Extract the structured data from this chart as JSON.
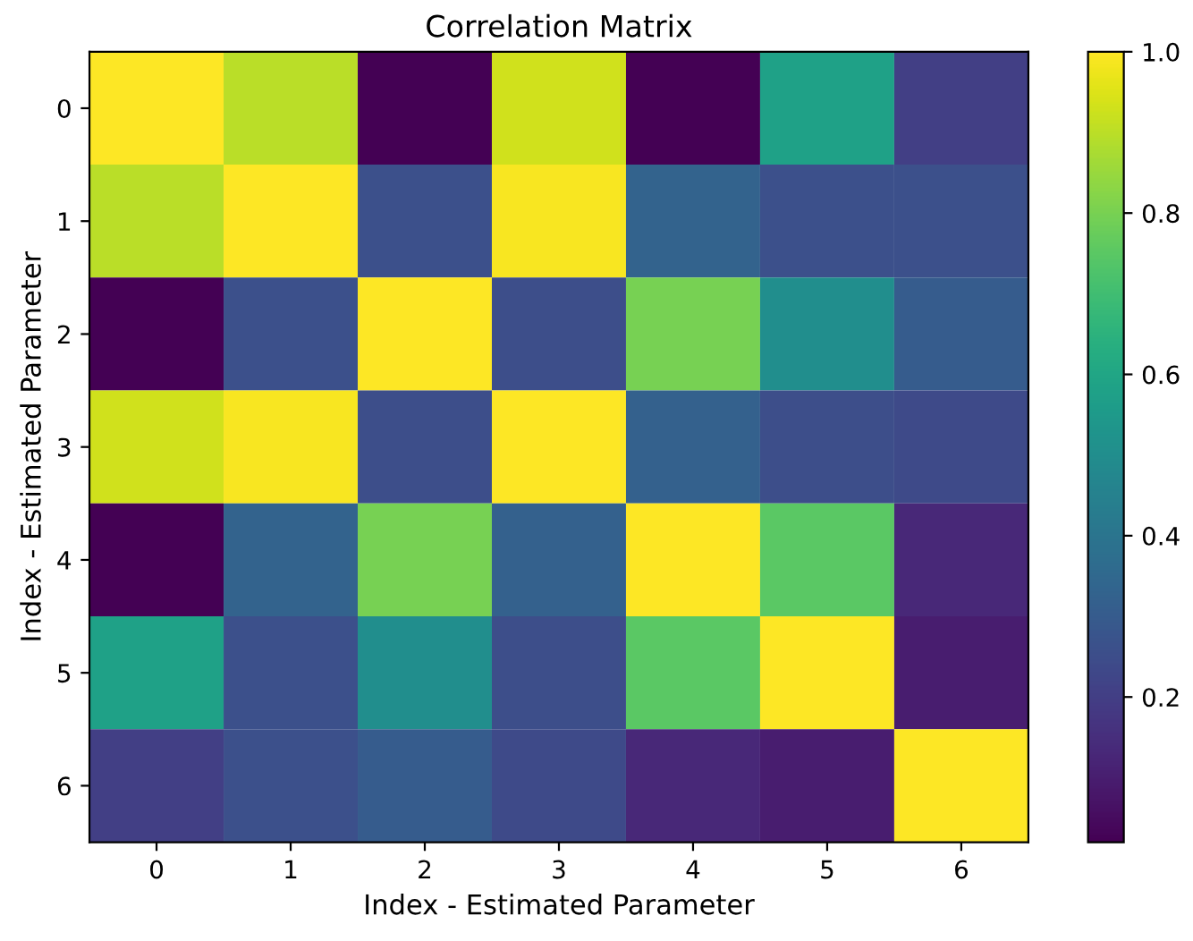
{
  "chart_data": {
    "type": "heatmap",
    "title": "Correlation Matrix",
    "xlabel": "Index - Estimated Parameter",
    "ylabel": "Index - Estimated Parameter",
    "categories": [
      "0",
      "1",
      "2",
      "3",
      "4",
      "5",
      "6"
    ],
    "y_categories": [
      "0",
      "1",
      "2",
      "3",
      "4",
      "5",
      "6"
    ],
    "cells": [
      [
        1.0,
        0.9,
        0.02,
        0.93,
        0.02,
        0.58,
        0.2
      ],
      [
        0.9,
        1.0,
        0.26,
        0.99,
        0.33,
        0.26,
        0.26
      ],
      [
        0.02,
        0.26,
        1.0,
        0.25,
        0.8,
        0.5,
        0.3
      ],
      [
        0.93,
        0.99,
        0.25,
        1.0,
        0.32,
        0.25,
        0.24
      ],
      [
        0.02,
        0.33,
        0.8,
        0.32,
        1.0,
        0.75,
        0.13
      ],
      [
        0.58,
        0.26,
        0.5,
        0.25,
        0.75,
        1.0,
        0.1
      ],
      [
        0.2,
        0.26,
        0.3,
        0.24,
        0.13,
        0.1,
        1.0
      ]
    ],
    "clim": [
      0.02,
      1.0
    ],
    "cticks": [
      0.2,
      0.4,
      0.6,
      0.8,
      {
        "value": 1,
        "label": "1.0"
      }
    ]
  }
}
